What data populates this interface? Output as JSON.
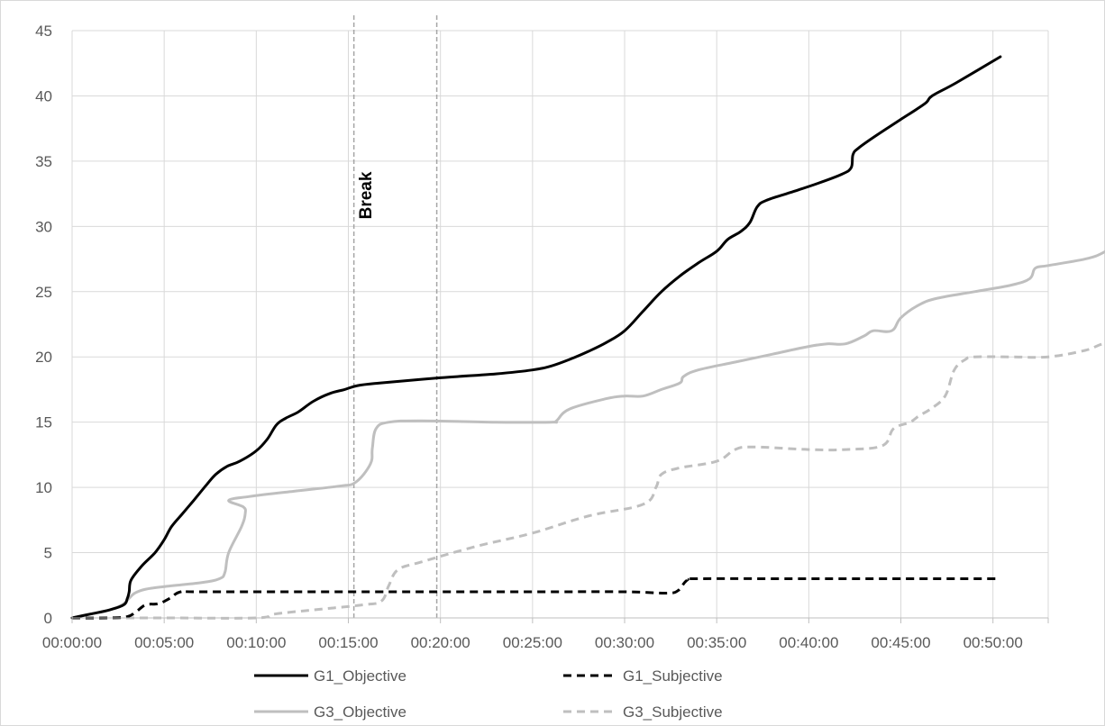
{
  "chart_data": {
    "type": "line",
    "title": "",
    "xlabel": "",
    "ylabel": "",
    "xlim_min": [
      0,
      53
    ],
    "ylim": [
      0,
      45
    ],
    "y_ticks": [
      "0",
      "5",
      "10",
      "15",
      "20",
      "25",
      "30",
      "35",
      "40",
      "45"
    ],
    "x_ticks": [
      "00:00:00",
      "00:05:00",
      "00:10:00",
      "00:15:00",
      "00:20:00",
      "00:25:00",
      "00:30:00",
      "00:35:00",
      "00:40:00",
      "00:45:00",
      "00:50:00"
    ],
    "grid": true,
    "legend_placement": "bottom",
    "annotations": [
      {
        "text": "Break",
        "x_start_min": 15.3,
        "x_end_min": 19.8
      }
    ],
    "series": [
      {
        "name": "G1_Objective",
        "color": "#000000",
        "dash": "solid",
        "points": [
          [
            0,
            0
          ],
          [
            1,
            0.3
          ],
          [
            2,
            0.6
          ],
          [
            2.8,
            1
          ],
          [
            3,
            1.5
          ],
          [
            3.1,
            2
          ],
          [
            3.2,
            2.9
          ],
          [
            3.8,
            4
          ],
          [
            4.5,
            5
          ],
          [
            5,
            6
          ],
          [
            5.4,
            7
          ],
          [
            6,
            8
          ],
          [
            6.6,
            9
          ],
          [
            7.3,
            10.2
          ],
          [
            7.8,
            11
          ],
          [
            8.4,
            11.6
          ],
          [
            9.1,
            12
          ],
          [
            10,
            12.8
          ],
          [
            10.6,
            13.7
          ],
          [
            11.1,
            14.8
          ],
          [
            11.6,
            15.3
          ],
          [
            12.3,
            15.8
          ],
          [
            13.1,
            16.6
          ],
          [
            14,
            17.2
          ],
          [
            14.8,
            17.5
          ],
          [
            15.5,
            17.8
          ],
          [
            16.7,
            18
          ],
          [
            20,
            18.4
          ],
          [
            23,
            18.7
          ],
          [
            25,
            19
          ],
          [
            26,
            19.3
          ],
          [
            27,
            19.8
          ],
          [
            28,
            20.4
          ],
          [
            29,
            21.1
          ],
          [
            30,
            22
          ],
          [
            31,
            23.5
          ],
          [
            32,
            25
          ],
          [
            33,
            26.2
          ],
          [
            34,
            27.2
          ],
          [
            35,
            28.1
          ],
          [
            35.6,
            29
          ],
          [
            36.3,
            29.6
          ],
          [
            36.8,
            30.3
          ],
          [
            37.2,
            31.5
          ],
          [
            37.7,
            32
          ],
          [
            39,
            32.6
          ],
          [
            40.5,
            33.3
          ],
          [
            41.8,
            34
          ],
          [
            42.3,
            34.5
          ],
          [
            42.4,
            35.5
          ],
          [
            42.7,
            36
          ],
          [
            43.7,
            37
          ],
          [
            45,
            38.2
          ],
          [
            46.3,
            39.4
          ],
          [
            46.7,
            40
          ],
          [
            48,
            41
          ],
          [
            50.4,
            43
          ]
        ]
      },
      {
        "name": "G1_Subjective",
        "color": "#000000",
        "dash": "dashed",
        "points": [
          [
            0,
            0
          ],
          [
            2,
            0
          ],
          [
            3,
            0.1
          ],
          [
            3.5,
            0.5
          ],
          [
            4,
            1
          ],
          [
            4.7,
            1.1
          ],
          [
            5.3,
            1.5
          ],
          [
            5.9,
            2
          ],
          [
            7,
            2
          ],
          [
            15,
            2
          ],
          [
            20,
            2
          ],
          [
            25,
            2
          ],
          [
            30,
            2
          ],
          [
            32.3,
            1.9
          ],
          [
            32.9,
            2.1
          ],
          [
            33.4,
            2.9
          ],
          [
            34,
            3
          ],
          [
            40,
            3
          ],
          [
            45,
            3
          ],
          [
            50.4,
            3
          ]
        ]
      },
      {
        "name": "G3_Objective",
        "color": "#bfbfbf",
        "dash": "solid",
        "points": [
          [
            0,
            0
          ],
          [
            1,
            0.3
          ],
          [
            2,
            0.6
          ],
          [
            2.7,
            1
          ],
          [
            3.1,
            1.5
          ],
          [
            3.4,
            1.9
          ],
          [
            4,
            2.2
          ],
          [
            5,
            2.4
          ],
          [
            7,
            2.7
          ],
          [
            8,
            3
          ],
          [
            8.3,
            3.5
          ],
          [
            8.5,
            5
          ],
          [
            9.2,
            7
          ],
          [
            9.4,
            8
          ],
          [
            9.3,
            8.5
          ],
          [
            8.5,
            9
          ],
          [
            9.6,
            9.3
          ],
          [
            12,
            9.7
          ],
          [
            14.5,
            10.1
          ],
          [
            15.4,
            10.4
          ],
          [
            16.2,
            11.8
          ],
          [
            16.3,
            13
          ],
          [
            16.5,
            14.5
          ],
          [
            17.2,
            15
          ],
          [
            19,
            15.1
          ],
          [
            23,
            15
          ],
          [
            26,
            15
          ],
          [
            26.3,
            15.1
          ],
          [
            27,
            16
          ],
          [
            29,
            16.8
          ],
          [
            30,
            17
          ],
          [
            31,
            17
          ],
          [
            32,
            17.5
          ],
          [
            33,
            18
          ],
          [
            33.2,
            18.5
          ],
          [
            34,
            19
          ],
          [
            36,
            19.6
          ],
          [
            38,
            20.2
          ],
          [
            40,
            20.8
          ],
          [
            41,
            21
          ],
          [
            42,
            21
          ],
          [
            43,
            21.6
          ],
          [
            43.5,
            22
          ],
          [
            44.5,
            22
          ],
          [
            45,
            23
          ],
          [
            46,
            24
          ],
          [
            47,
            24.5
          ],
          [
            49,
            25
          ],
          [
            51,
            25.5
          ],
          [
            52,
            26
          ],
          [
            52.3,
            26.8
          ],
          [
            53,
            27
          ],
          [
            55,
            27.5
          ],
          [
            56,
            28
          ],
          [
            57,
            29
          ],
          [
            57.9,
            30
          ]
        ]
      },
      {
        "name": "G3_Subjective",
        "color": "#bfbfbf",
        "dash": "dashed",
        "points": [
          [
            0,
            0
          ],
          [
            5,
            0
          ],
          [
            10,
            0
          ],
          [
            11,
            0.3
          ],
          [
            13,
            0.6
          ],
          [
            15.8,
            1
          ],
          [
            16.8,
            1.3
          ],
          [
            17.2,
            2.5
          ],
          [
            17.7,
            3.7
          ],
          [
            19,
            4.3
          ],
          [
            22,
            5.5
          ],
          [
            25,
            6.5
          ],
          [
            28,
            7.8
          ],
          [
            31,
            8.7
          ],
          [
            31.7,
            10
          ],
          [
            32,
            11
          ],
          [
            33,
            11.5
          ],
          [
            35,
            12
          ],
          [
            36,
            12.9
          ],
          [
            37,
            13.1
          ],
          [
            40,
            12.9
          ],
          [
            42,
            12.9
          ],
          [
            44,
            13.2
          ],
          [
            44.6,
            14.5
          ],
          [
            45.5,
            15
          ],
          [
            46,
            15.5
          ],
          [
            46.6,
            16
          ],
          [
            47.4,
            17
          ],
          [
            47.9,
            19
          ],
          [
            48.5,
            19.8
          ],
          [
            49,
            20
          ],
          [
            51,
            20
          ],
          [
            53,
            20
          ],
          [
            55,
            20.5
          ],
          [
            56,
            21
          ],
          [
            57,
            21
          ],
          [
            59,
            21
          ],
          [
            60,
            21
          ],
          [
            61,
            21.5
          ],
          [
            61.6,
            21.8
          ]
        ]
      }
    ]
  }
}
